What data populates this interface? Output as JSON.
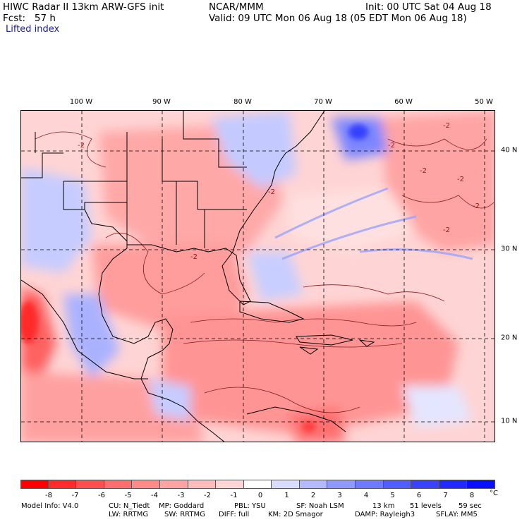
{
  "header": {
    "title": "HIWC Radar II 13km ARW-GFS init",
    "source": "NCAR/MMM",
    "init": "Init: 00 UTC Sat 04 Aug 18",
    "fcst": "Fcst:   57 h",
    "valid": "Valid: 09 UTC Mon 06 Aug 18 (05 EDT Mon 06 Aug 18)",
    "field": "Lifted index"
  },
  "axes": {
    "longitudes": [
      "100 W",
      "90 W",
      "80 W",
      "70 W",
      "60 W",
      "50 W"
    ],
    "latitudes": [
      "40 N",
      "30 N",
      "20 N",
      "10 N"
    ]
  },
  "map": {
    "contour_labels": [
      "-2",
      "-2",
      "-2",
      "-2",
      "-2",
      "-2",
      "-2",
      "-2",
      "-2"
    ]
  },
  "colorbar": {
    "labels": [
      "-8",
      "-7",
      "-6",
      "-5",
      "-4",
      "-3",
      "-2",
      "-1",
      "0",
      "1",
      "2",
      "3",
      "4",
      "5",
      "6",
      "7",
      "8"
    ],
    "unit": "°C",
    "colors": [
      "#ff0000",
      "#ff2a2a",
      "#ff4f4f",
      "#ff6e6e",
      "#ff8a8a",
      "#ffa3a3",
      "#ffbcbc",
      "#ffd6d6",
      "#ffffff",
      "#d8dcff",
      "#b3baff",
      "#9099ff",
      "#6f79ff",
      "#535cff",
      "#3a42ff",
      "#2229ff",
      "#0a0fff"
    ]
  },
  "footer": {
    "line1": [
      "Model Info: V4.0",
      "CU: N_Tiedt",
      "MP: Goddard",
      "PBL: YSU",
      "SF: Noah LSM",
      "13 km",
      "51 levels",
      "59 sec"
    ],
    "line2": [
      "LW: RRTMG",
      "SW: RRTMG",
      "DIFF: full",
      "KM: 2D Smagor",
      "DAMP: Rayleigh3",
      "SFLAY: MM5"
    ]
  }
}
